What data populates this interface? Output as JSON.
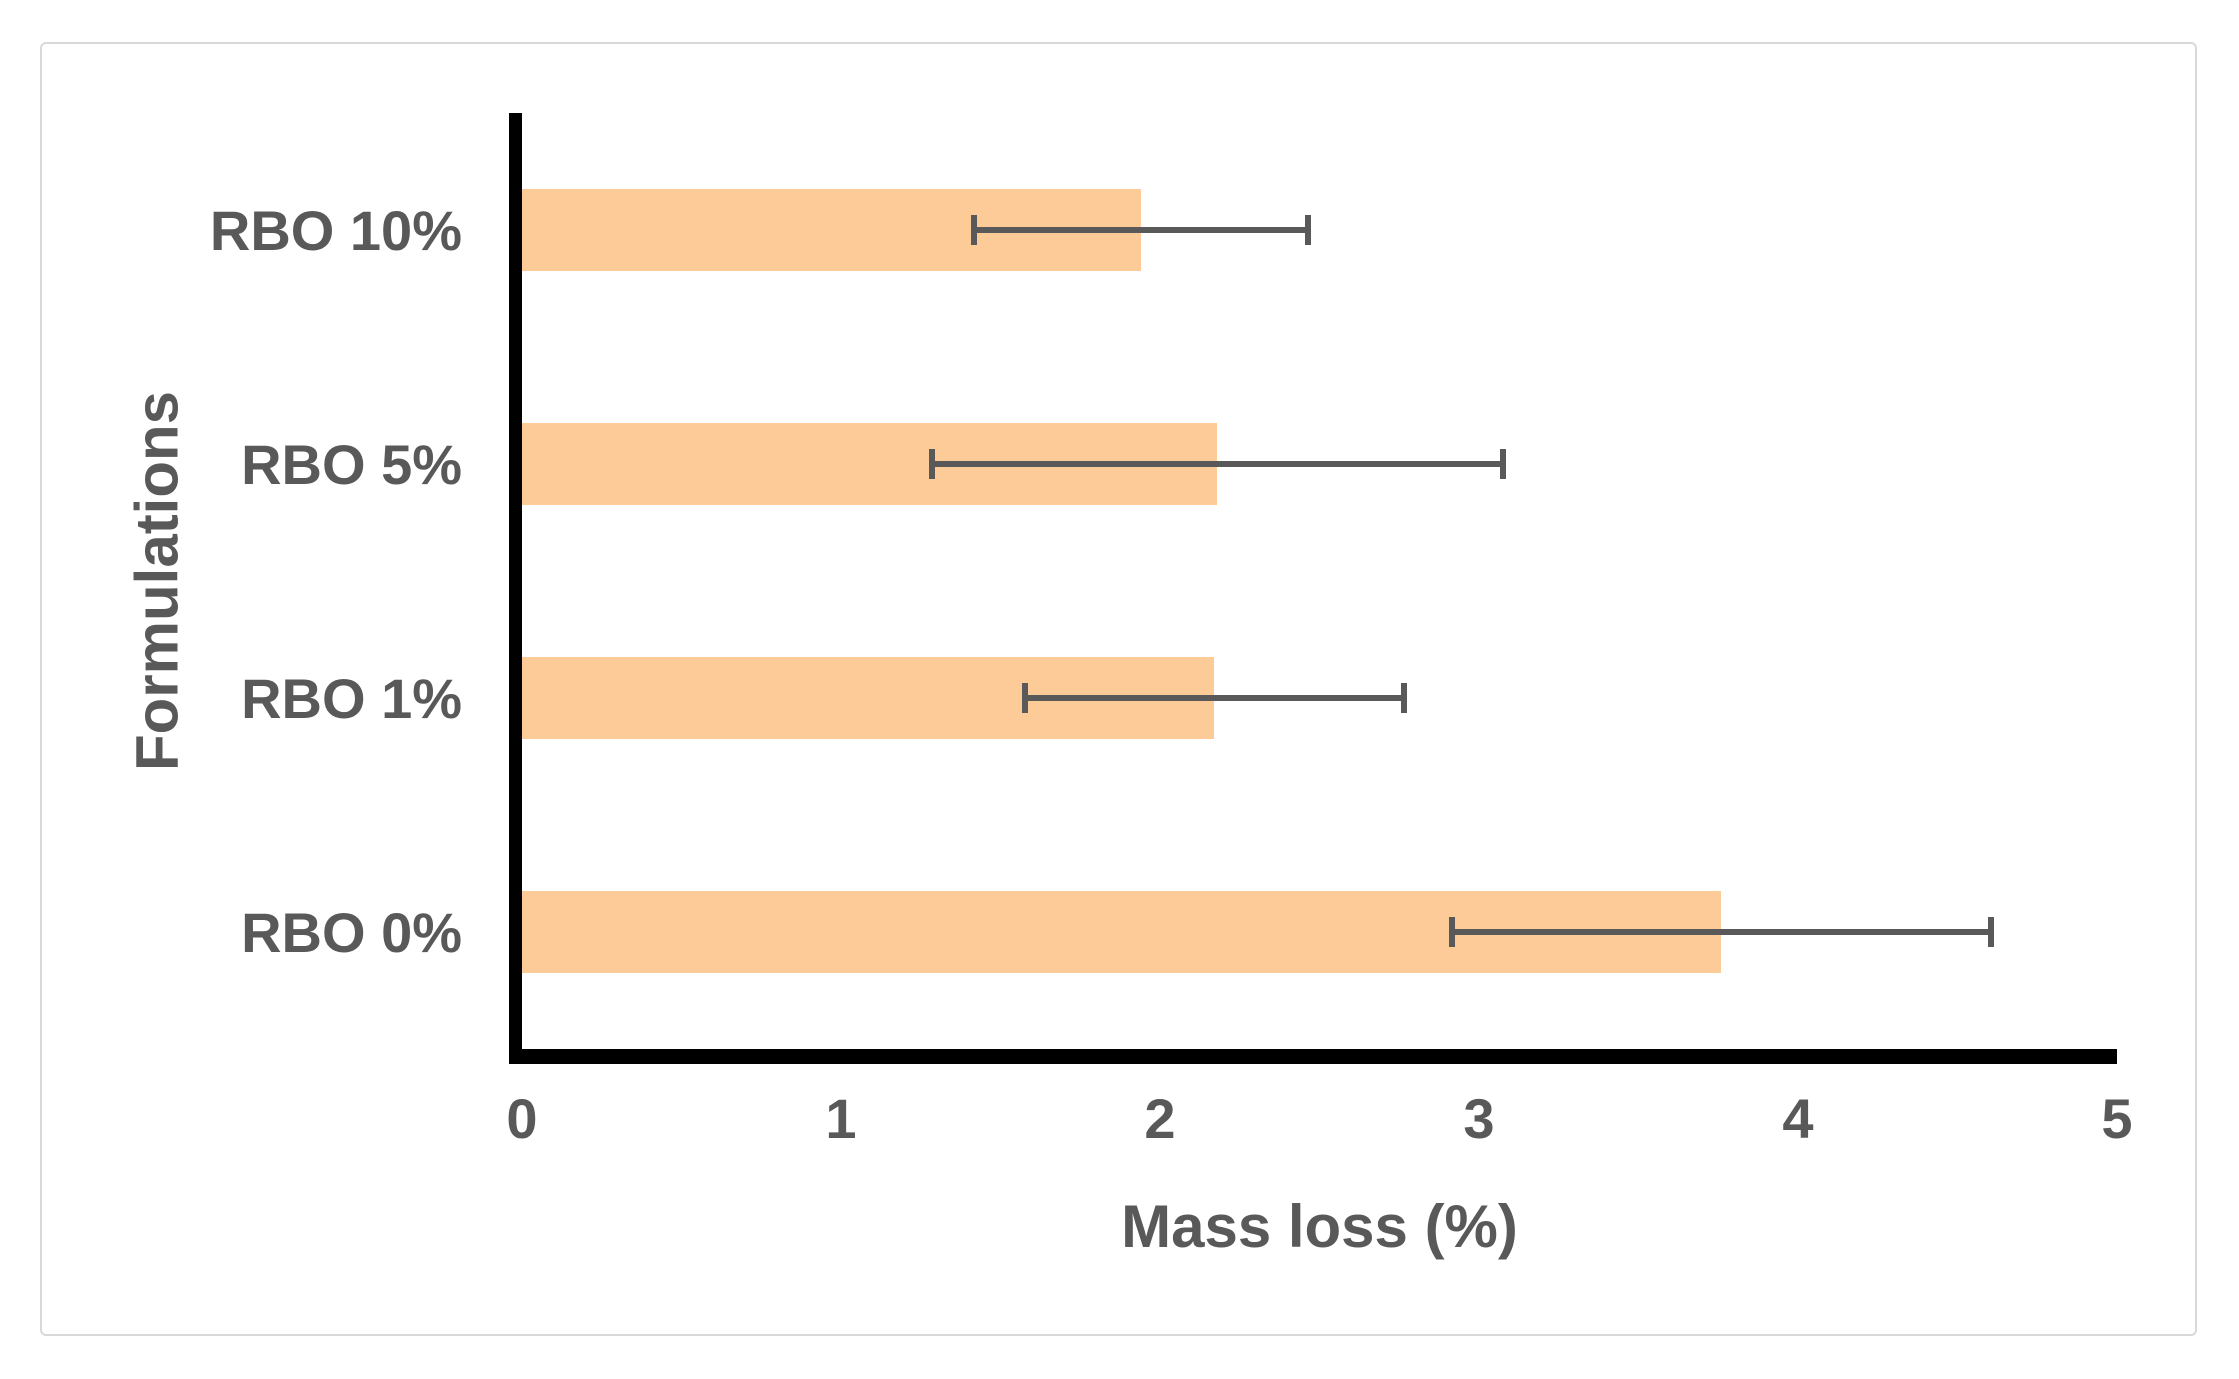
{
  "chart_data": {
    "type": "bar",
    "orientation": "horizontal",
    "title": "",
    "xlabel": "Mass loss (%)",
    "ylabel": "Formulations",
    "xlim": [
      0,
      5
    ],
    "x_ticks": [
      "0",
      "1",
      "2",
      "3",
      "4",
      "5"
    ],
    "grid": false,
    "legend": "none",
    "bars_top_to_bottom": [
      {
        "label": "RBO 10%",
        "value": 1.94,
        "error": 0.53
      },
      {
        "label": "RBO 5%",
        "value": 2.18,
        "error": 0.9
      },
      {
        "label": "RBO 1%",
        "value": 2.17,
        "error": 0.6
      },
      {
        "label": "RBO 0%",
        "value": 3.76,
        "error": 0.85
      }
    ],
    "colors": {
      "bar": "#fccb98",
      "error_bar": "#595959",
      "axis": "#000000",
      "text": "#595959",
      "frame_border": "#d9d9d9",
      "background": "#ffffff"
    }
  }
}
